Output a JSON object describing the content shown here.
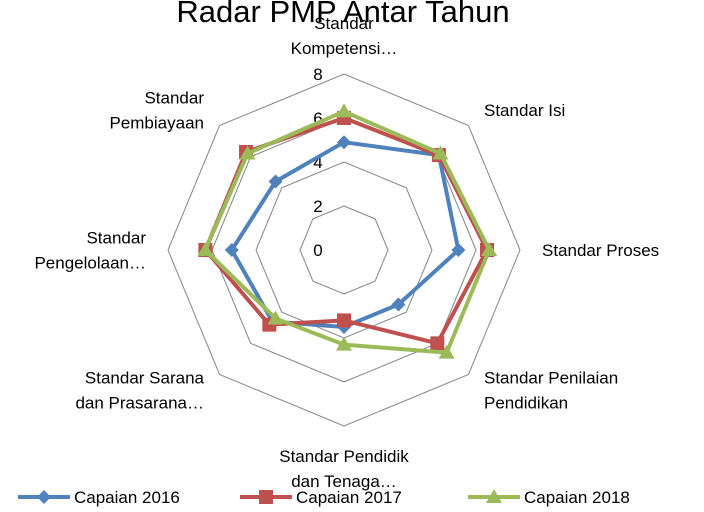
{
  "chart_data": {
    "type": "radar",
    "title": "Radar PMP Antar Tahun",
    "categories": [
      "Standar Kompetensi…",
      "Standar Isi",
      "Standar Proses",
      "Standar Penilaian Pendidikan",
      "Standar Pendidik dan Tenaga…",
      "Standar Sarana dan Prasarana…",
      "Standar Pengelolaan…",
      "Standar Pembiayaan"
    ],
    "series": [
      {
        "name": "Capaian 2016",
        "color": "#4f81bd",
        "marker": "diamond",
        "values": [
          4.9,
          6.1,
          5.2,
          3.5,
          3.5,
          4.6,
          5.1,
          4.4
        ]
      },
      {
        "name": "Capaian 2017",
        "color": "#c0504d",
        "marker": "square",
        "values": [
          6.0,
          6.1,
          6.5,
          6.0,
          3.2,
          4.8,
          6.3,
          6.3
        ]
      },
      {
        "name": "Capaian 2018",
        "color": "#9bbb59",
        "marker": "triangle",
        "values": [
          6.3,
          6.2,
          6.6,
          6.6,
          4.3,
          4.4,
          6.3,
          6.2
        ]
      }
    ],
    "rlim": [
      0,
      8
    ],
    "rticks": [
      0,
      2,
      4,
      6,
      8
    ],
    "grid": true,
    "legend": "bottom"
  }
}
